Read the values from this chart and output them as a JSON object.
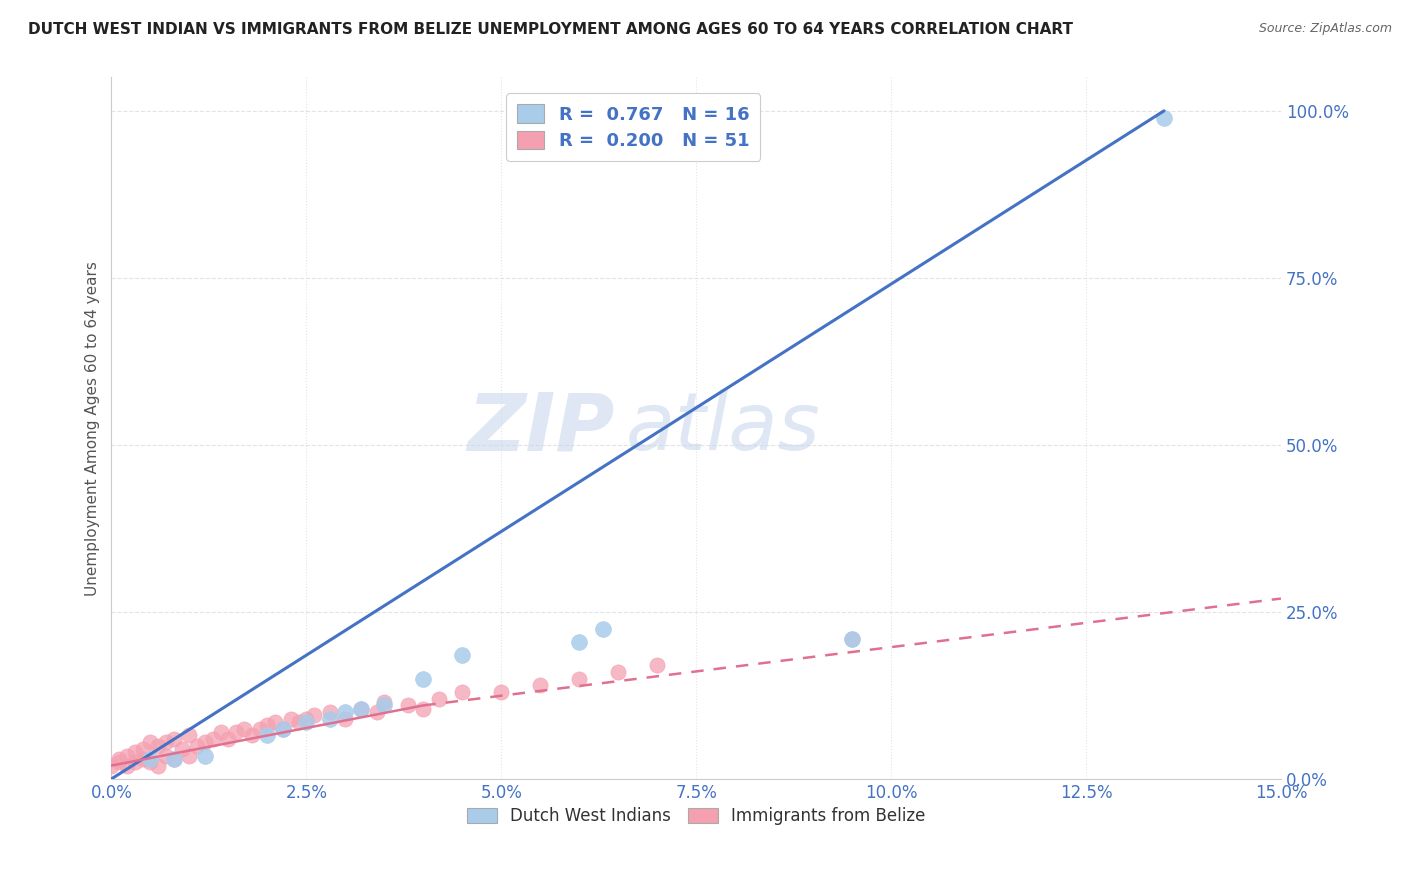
{
  "title": "DUTCH WEST INDIAN VS IMMIGRANTS FROM BELIZE UNEMPLOYMENT AMONG AGES 60 TO 64 YEARS CORRELATION CHART",
  "source": "Source: ZipAtlas.com",
  "ylabel": "Unemployment Among Ages 60 to 64 years",
  "xlim": [
    0.0,
    0.15
  ],
  "ylim": [
    0.0,
    1.05
  ],
  "ytick_labels": [
    "0.0%",
    "25.0%",
    "50.0%",
    "75.0%",
    "100.0%"
  ],
  "ytick_vals": [
    0.0,
    0.25,
    0.5,
    0.75,
    1.0
  ],
  "xtick_vals": [
    0.0,
    0.025,
    0.05,
    0.075,
    0.1,
    0.125,
    0.15
  ],
  "xtick_labels": [
    "0.0%",
    "2.5%",
    "5.0%",
    "7.5%",
    "10.0%",
    "12.5%",
    "15.0%"
  ],
  "blue_scatter_x": [
    0.005,
    0.008,
    0.012,
    0.02,
    0.022,
    0.025,
    0.028,
    0.03,
    0.032,
    0.035,
    0.04,
    0.045,
    0.06,
    0.063,
    0.095,
    0.135
  ],
  "blue_scatter_y": [
    0.03,
    0.03,
    0.035,
    0.065,
    0.075,
    0.085,
    0.09,
    0.1,
    0.105,
    0.11,
    0.15,
    0.185,
    0.205,
    0.225,
    0.21,
    0.99
  ],
  "blue_trend_x": [
    0.0,
    0.135
  ],
  "blue_trend_y": [
    0.0,
    1.0
  ],
  "pink_scatter_x": [
    0.0,
    0.001,
    0.001,
    0.002,
    0.002,
    0.003,
    0.003,
    0.004,
    0.004,
    0.005,
    0.005,
    0.006,
    0.006,
    0.007,
    0.007,
    0.008,
    0.008,
    0.009,
    0.01,
    0.01,
    0.011,
    0.012,
    0.013,
    0.014,
    0.015,
    0.016,
    0.017,
    0.018,
    0.019,
    0.02,
    0.021,
    0.022,
    0.023,
    0.024,
    0.025,
    0.026,
    0.028,
    0.03,
    0.032,
    0.034,
    0.035,
    0.038,
    0.04,
    0.042,
    0.045,
    0.05,
    0.055,
    0.06,
    0.065,
    0.07,
    0.095
  ],
  "pink_scatter_y": [
    0.02,
    0.025,
    0.03,
    0.02,
    0.035,
    0.025,
    0.04,
    0.03,
    0.045,
    0.025,
    0.055,
    0.02,
    0.05,
    0.035,
    0.055,
    0.03,
    0.06,
    0.045,
    0.035,
    0.065,
    0.05,
    0.055,
    0.06,
    0.07,
    0.06,
    0.07,
    0.075,
    0.065,
    0.075,
    0.08,
    0.085,
    0.075,
    0.09,
    0.085,
    0.09,
    0.095,
    0.1,
    0.09,
    0.105,
    0.1,
    0.115,
    0.11,
    0.105,
    0.12,
    0.13,
    0.13,
    0.14,
    0.15,
    0.16,
    0.17,
    0.21
  ],
  "pink_solid_trend_x": [
    0.0,
    0.04
  ],
  "pink_solid_trend_y": [
    0.02,
    0.11
  ],
  "pink_dashed_trend_x": [
    0.04,
    0.15
  ],
  "pink_dashed_trend_y": [
    0.11,
    0.27
  ],
  "blue_color": "#A8CCEA",
  "blue_line_color": "#4472C4",
  "pink_color": "#F4A0B0",
  "pink_line_color": "#E07090",
  "R_blue": "0.767",
  "N_blue": "16",
  "R_pink": "0.200",
  "N_pink": "51",
  "legend_label_blue": "Dutch West Indians",
  "legend_label_pink": "Immigrants from Belize",
  "watermark_zip": "ZIP",
  "watermark_atlas": "atlas",
  "title_color": "#222222",
  "axis_color": "#4472C4",
  "tick_color": "#4472C4",
  "background_color": "#FFFFFF",
  "grid_color": "#DDDDDD"
}
